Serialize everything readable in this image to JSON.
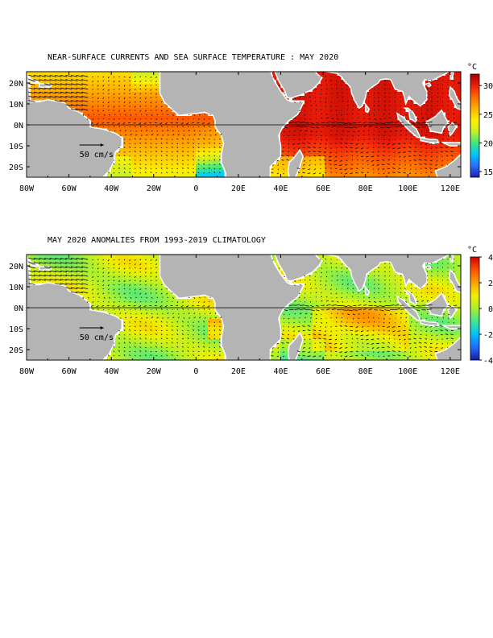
{
  "panels": [
    {
      "title": "NEAR-SURFACE CURRENTS AND SEA SURFACE TEMPERATURE : MAY 2020",
      "colorbar": {
        "unit": "°C",
        "min": 14,
        "max": 32,
        "ticks": [
          "30",
          "25",
          "20",
          "15"
        ],
        "stops": [
          "#2020b0",
          "#2a6cff",
          "#00c8ff",
          "#3ce87a",
          "#c8f028",
          "#fff000",
          "#ffb000",
          "#ff6a00",
          "#ee1e0a",
          "#a80000"
        ]
      },
      "scale_label": "50 cm/s"
    },
    {
      "title": "MAY 2020 ANOMALIES FROM 1993-2019 CLIMATOLOGY",
      "colorbar": {
        "unit": "°C",
        "min": -4,
        "max": 4,
        "ticks": [
          "4",
          "2",
          "0",
          "-2",
          "-4"
        ],
        "stops": [
          "#1a1aa0",
          "#1e6cff",
          "#00c0ff",
          "#40e890",
          "#a8f030",
          "#f0f000",
          "#ffa000",
          "#ff5000",
          "#d00000"
        ]
      },
      "scale_label": "50 cm/s"
    }
  ],
  "lat_labels": [
    "20N",
    "10N",
    "0N",
    "10S",
    "20S"
  ],
  "lon_labels": [
    "80W",
    "60W",
    "40W",
    "20W",
    "0",
    "20E",
    "40E",
    "60E",
    "80E",
    "100E",
    "120E"
  ],
  "colors": {
    "land": "#b4b4b4",
    "coast": "#ffffff",
    "vector": "#000000"
  }
}
